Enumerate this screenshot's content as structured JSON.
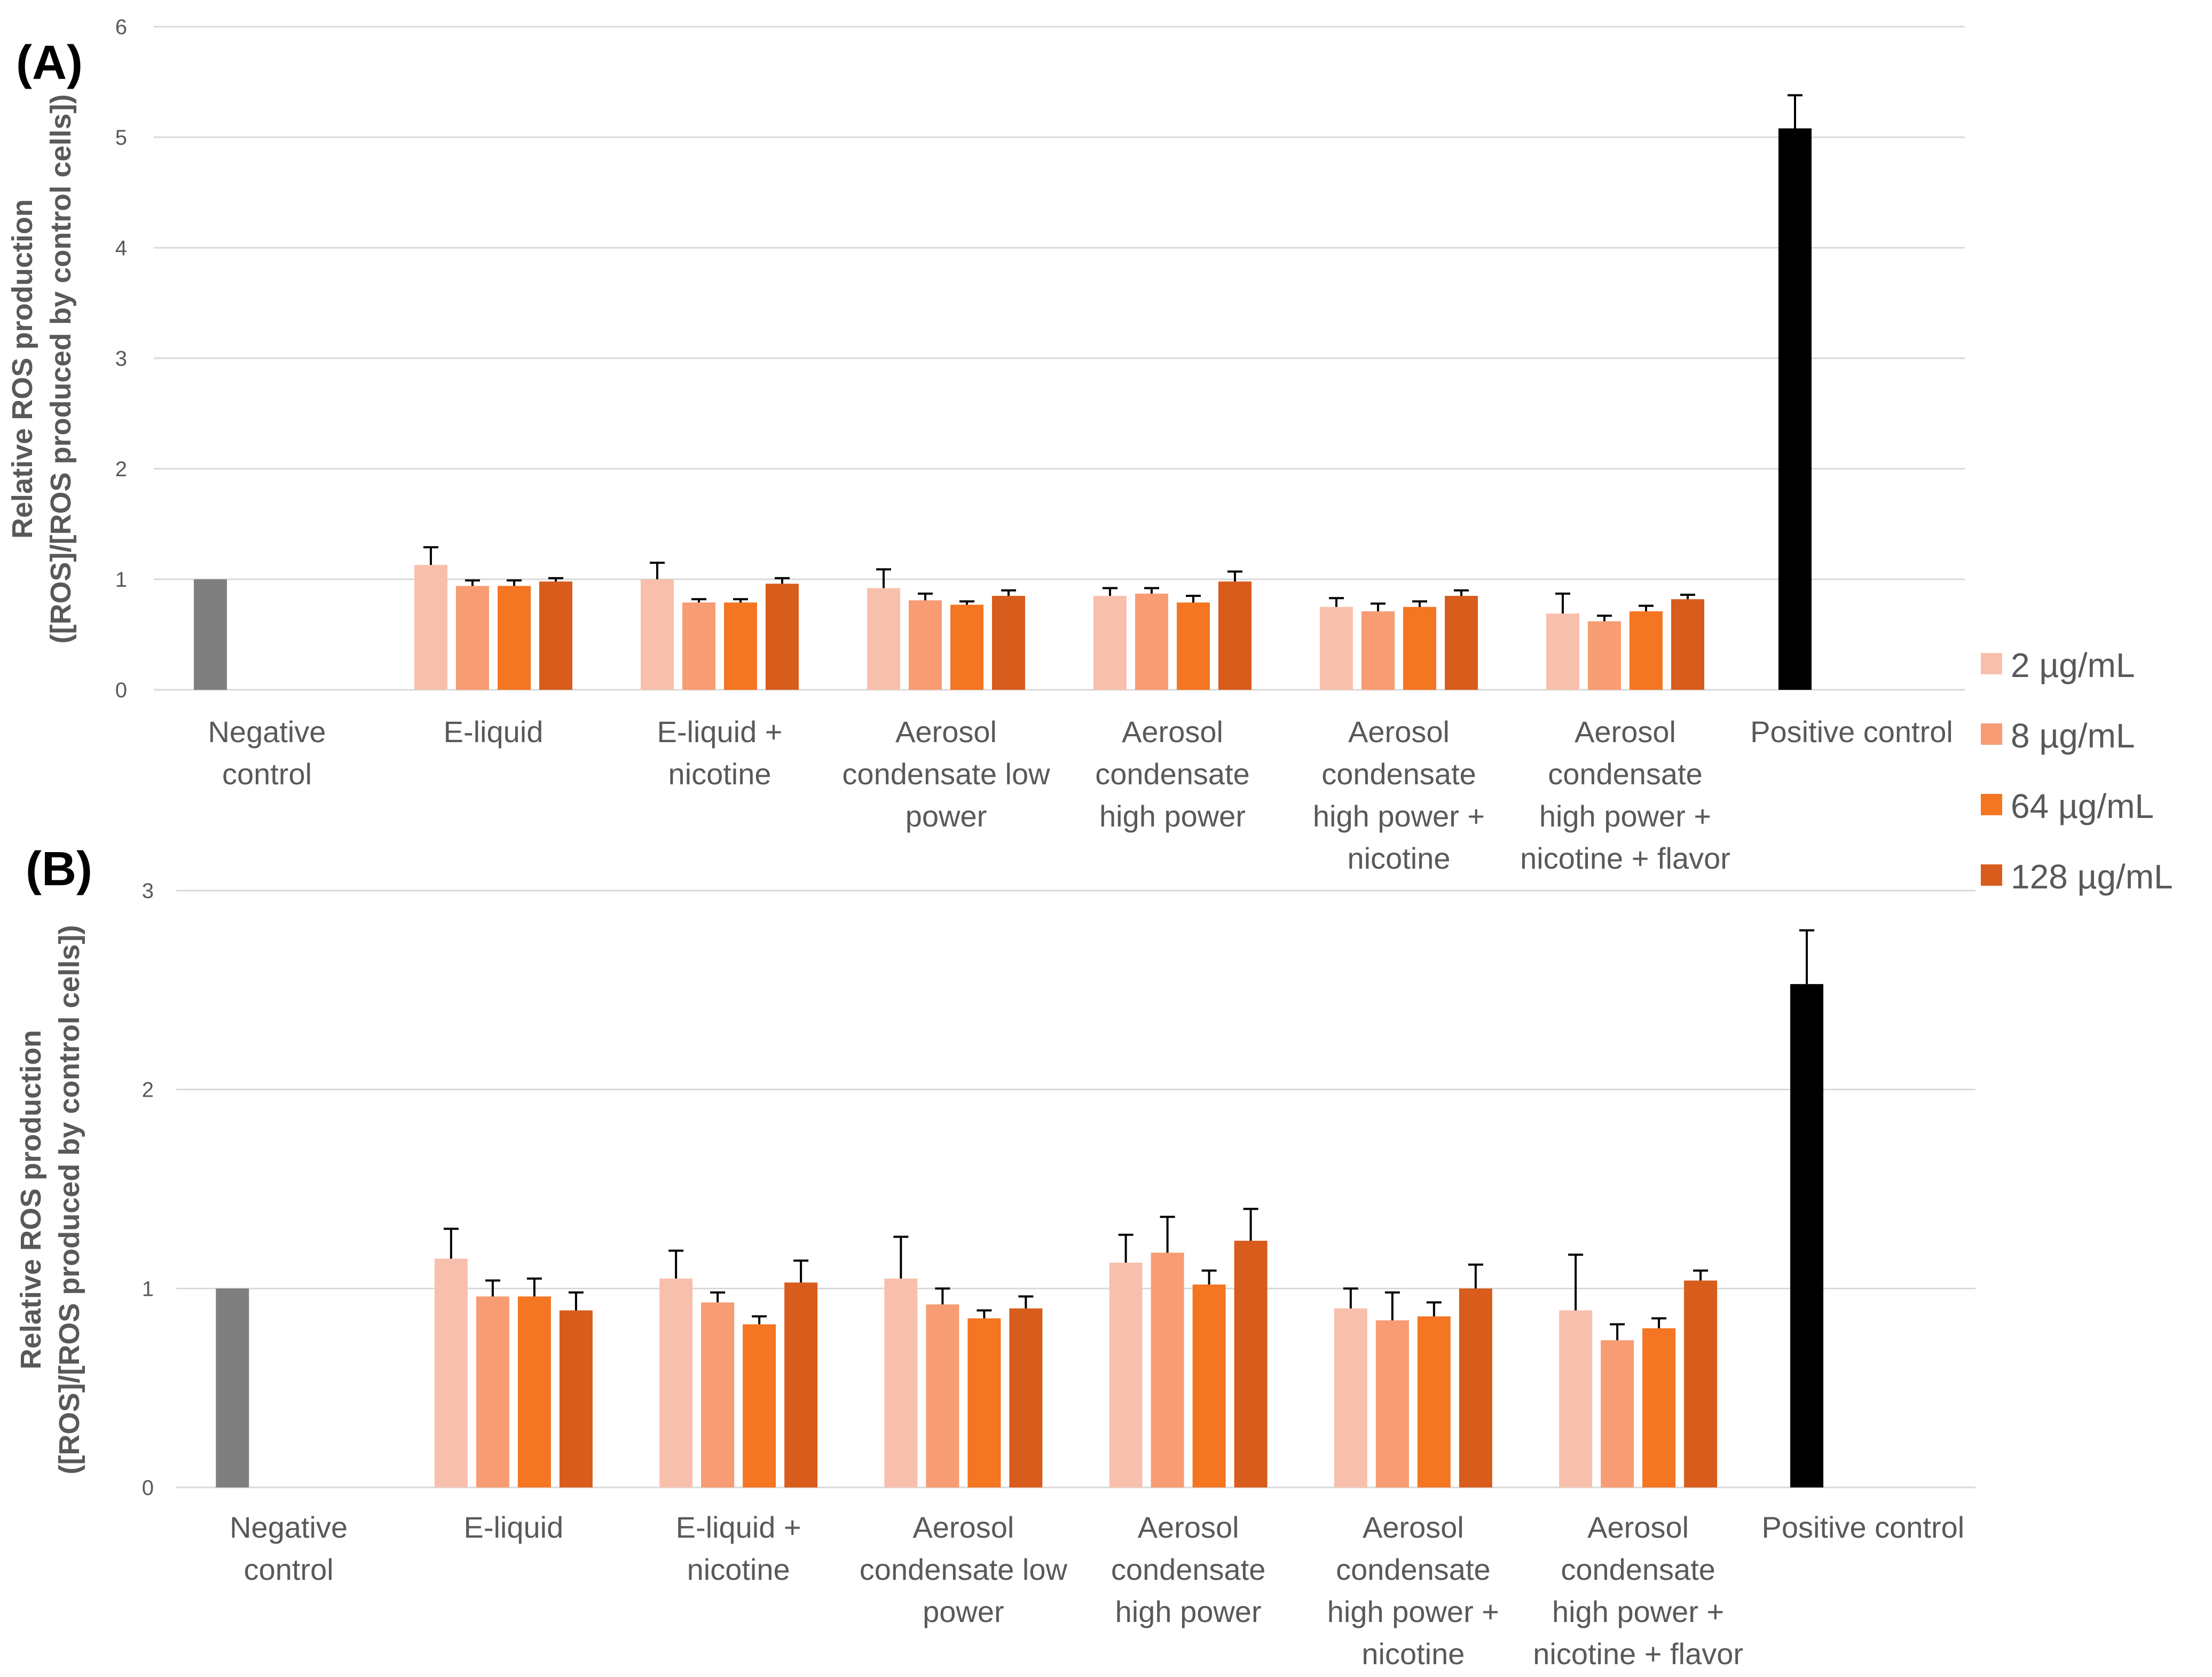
{
  "colors": {
    "conc_2": "#f8c0ac",
    "conc_8": "#f79c73",
    "conc_64": "#f47522",
    "conc_128": "#d85c1b",
    "negative": "#7f7f7f",
    "positive": "#000000"
  },
  "legend": {
    "items": [
      {
        "label": "2 µg/mL",
        "color_key": "conc_2"
      },
      {
        "label": "8 µg/mL",
        "color_key": "conc_8"
      },
      {
        "label": "64 µg/mL",
        "color_key": "conc_64"
      },
      {
        "label": "128 µg/mL",
        "color_key": "conc_128"
      }
    ]
  },
  "chart_data": [
    {
      "panel": "(A)",
      "type": "bar",
      "ylabel": [
        "Relative ROS production",
        "([ROS]/[ROS produced by control cells])"
      ],
      "ylim": [
        0,
        6
      ],
      "yticks": [
        0,
        1,
        2,
        3,
        4,
        5,
        6
      ],
      "categories": [
        {
          "lines": [
            "Negative",
            "control"
          ],
          "bars": [
            {
              "series": "Negative control",
              "color_key": "negative",
              "value": 1.0,
              "error": 0
            }
          ]
        },
        {
          "lines": [
            "E-liquid"
          ],
          "bars": [
            {
              "series": "2 µg/mL",
              "color_key": "conc_2",
              "value": 1.13,
              "error": 0.16
            },
            {
              "series": "8 µg/mL",
              "color_key": "conc_8",
              "value": 0.94,
              "error": 0.05
            },
            {
              "series": "64 µg/mL",
              "color_key": "conc_64",
              "value": 0.94,
              "error": 0.05
            },
            {
              "series": "128 µg/mL",
              "color_key": "conc_128",
              "value": 0.98,
              "error": 0.03
            }
          ]
        },
        {
          "lines": [
            "E-liquid +",
            "nicotine"
          ],
          "bars": [
            {
              "series": "2 µg/mL",
              "color_key": "conc_2",
              "value": 1.0,
              "error": 0.15
            },
            {
              "series": "8 µg/mL",
              "color_key": "conc_8",
              "value": 0.79,
              "error": 0.03
            },
            {
              "series": "64 µg/mL",
              "color_key": "conc_64",
              "value": 0.79,
              "error": 0.03
            },
            {
              "series": "128 µg/mL",
              "color_key": "conc_128",
              "value": 0.96,
              "error": 0.05
            }
          ]
        },
        {
          "lines": [
            "Aerosol",
            "condensate low",
            "power"
          ],
          "bars": [
            {
              "series": "2 µg/mL",
              "color_key": "conc_2",
              "value": 0.92,
              "error": 0.17
            },
            {
              "series": "8 µg/mL",
              "color_key": "conc_8",
              "value": 0.81,
              "error": 0.06
            },
            {
              "series": "64 µg/mL",
              "color_key": "conc_64",
              "value": 0.77,
              "error": 0.03
            },
            {
              "series": "128 µg/mL",
              "color_key": "conc_128",
              "value": 0.85,
              "error": 0.05
            }
          ]
        },
        {
          "lines": [
            "Aerosol",
            "condensate",
            "high power"
          ],
          "bars": [
            {
              "series": "2 µg/mL",
              "color_key": "conc_2",
              "value": 0.85,
              "error": 0.07
            },
            {
              "series": "8 µg/mL",
              "color_key": "conc_8",
              "value": 0.87,
              "error": 0.05
            },
            {
              "series": "64 µg/mL",
              "color_key": "conc_64",
              "value": 0.79,
              "error": 0.06
            },
            {
              "series": "128 µg/mL",
              "color_key": "conc_128",
              "value": 0.98,
              "error": 0.09
            }
          ]
        },
        {
          "lines": [
            "Aerosol",
            "condensate",
            "high power +",
            "nicotine"
          ],
          "bars": [
            {
              "series": "2 µg/mL",
              "color_key": "conc_2",
              "value": 0.75,
              "error": 0.08
            },
            {
              "series": "8 µg/mL",
              "color_key": "conc_8",
              "value": 0.71,
              "error": 0.07
            },
            {
              "series": "64 µg/mL",
              "color_key": "conc_64",
              "value": 0.75,
              "error": 0.05
            },
            {
              "series": "128 µg/mL",
              "color_key": "conc_128",
              "value": 0.85,
              "error": 0.05
            }
          ]
        },
        {
          "lines": [
            "Aerosol",
            "condensate",
            "high power +",
            "nicotine + flavor"
          ],
          "bars": [
            {
              "series": "2 µg/mL",
              "color_key": "conc_2",
              "value": 0.69,
              "error": 0.18
            },
            {
              "series": "8 µg/mL",
              "color_key": "conc_8",
              "value": 0.62,
              "error": 0.05
            },
            {
              "series": "64 µg/mL",
              "color_key": "conc_64",
              "value": 0.71,
              "error": 0.05
            },
            {
              "series": "128 µg/mL",
              "color_key": "conc_128",
              "value": 0.82,
              "error": 0.04
            }
          ]
        },
        {
          "lines": [
            "Positive control"
          ],
          "bars": [
            {
              "series": "Positive control",
              "color_key": "positive",
              "value": 5.08,
              "error": 0.3
            }
          ]
        }
      ]
    },
    {
      "panel": "(B)",
      "type": "bar",
      "ylabel": [
        "Relative ROS production",
        "([ROS]/[ROS produced by control cells])"
      ],
      "ylim": [
        0,
        3
      ],
      "yticks": [
        0,
        1,
        2,
        3
      ],
      "categories": [
        {
          "lines": [
            "Negative",
            "control"
          ],
          "bars": [
            {
              "series": "Negative control",
              "color_key": "negative",
              "value": 1.0,
              "error": 0
            }
          ]
        },
        {
          "lines": [
            "E-liquid"
          ],
          "bars": [
            {
              "series": "2 µg/mL",
              "color_key": "conc_2",
              "value": 1.15,
              "error": 0.15
            },
            {
              "series": "8 µg/mL",
              "color_key": "conc_8",
              "value": 0.96,
              "error": 0.08
            },
            {
              "series": "64 µg/mL",
              "color_key": "conc_64",
              "value": 0.96,
              "error": 0.09
            },
            {
              "series": "128 µg/mL",
              "color_key": "conc_128",
              "value": 0.89,
              "error": 0.09
            }
          ]
        },
        {
          "lines": [
            "E-liquid +",
            "nicotine"
          ],
          "bars": [
            {
              "series": "2 µg/mL",
              "color_key": "conc_2",
              "value": 1.05,
              "error": 0.14
            },
            {
              "series": "8 µg/mL",
              "color_key": "conc_8",
              "value": 0.93,
              "error": 0.05
            },
            {
              "series": "64 µg/mL",
              "color_key": "conc_64",
              "value": 0.82,
              "error": 0.04
            },
            {
              "series": "128 µg/mL",
              "color_key": "conc_128",
              "value": 1.03,
              "error": 0.11
            }
          ]
        },
        {
          "lines": [
            "Aerosol",
            "condensate low",
            "power"
          ],
          "bars": [
            {
              "series": "2 µg/mL",
              "color_key": "conc_2",
              "value": 1.05,
              "error": 0.21
            },
            {
              "series": "8 µg/mL",
              "color_key": "conc_8",
              "value": 0.92,
              "error": 0.08
            },
            {
              "series": "64 µg/mL",
              "color_key": "conc_64",
              "value": 0.85,
              "error": 0.04
            },
            {
              "series": "128 µg/mL",
              "color_key": "conc_128",
              "value": 0.9,
              "error": 0.06
            }
          ]
        },
        {
          "lines": [
            "Aerosol",
            "condensate",
            "high power"
          ],
          "bars": [
            {
              "series": "2 µg/mL",
              "color_key": "conc_2",
              "value": 1.13,
              "error": 0.14
            },
            {
              "series": "8 µg/mL",
              "color_key": "conc_8",
              "value": 1.18,
              "error": 0.18
            },
            {
              "series": "64 µg/mL",
              "color_key": "conc_64",
              "value": 1.02,
              "error": 0.07
            },
            {
              "series": "128 µg/mL",
              "color_key": "conc_128",
              "value": 1.24,
              "error": 0.16
            }
          ]
        },
        {
          "lines": [
            "Aerosol",
            "condensate",
            "high power +",
            "nicotine"
          ],
          "bars": [
            {
              "series": "2 µg/mL",
              "color_key": "conc_2",
              "value": 0.9,
              "error": 0.1
            },
            {
              "series": "8 µg/mL",
              "color_key": "conc_8",
              "value": 0.84,
              "error": 0.14
            },
            {
              "series": "64 µg/mL",
              "color_key": "conc_64",
              "value": 0.86,
              "error": 0.07
            },
            {
              "series": "128 µg/mL",
              "color_key": "conc_128",
              "value": 1.0,
              "error": 0.12
            }
          ]
        },
        {
          "lines": [
            "Aerosol",
            "condensate",
            "high power +",
            "nicotine + flavor"
          ],
          "bars": [
            {
              "series": "2 µg/mL",
              "color_key": "conc_2",
              "value": 0.89,
              "error": 0.28
            },
            {
              "series": "8 µg/mL",
              "color_key": "conc_8",
              "value": 0.74,
              "error": 0.08
            },
            {
              "series": "64 µg/mL",
              "color_key": "conc_64",
              "value": 0.8,
              "error": 0.05
            },
            {
              "series": "128 µg/mL",
              "color_key": "conc_128",
              "value": 1.04,
              "error": 0.05
            }
          ]
        },
        {
          "lines": [
            "Positive control"
          ],
          "bars": [
            {
              "series": "Positive control",
              "color_key": "positive",
              "value": 2.53,
              "error": 0.27
            }
          ]
        }
      ]
    }
  ]
}
